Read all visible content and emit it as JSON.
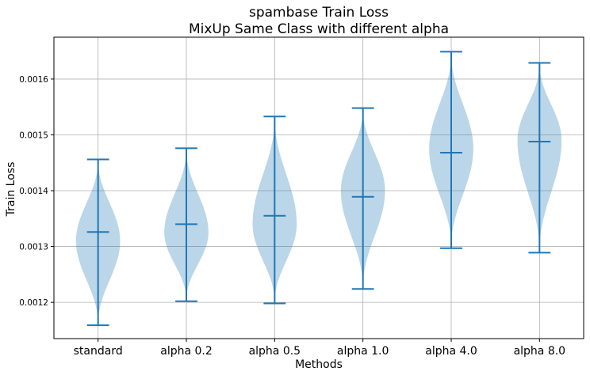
{
  "chart_data": {
    "type": "violin",
    "title_line1": "spambase Train Loss",
    "title_line2": "MixUp Same Class with different alpha",
    "xlabel": "Methods",
    "ylabel": "Train Loss",
    "categories": [
      "standard",
      "alpha 0.2",
      "alpha 0.5",
      "alpha 1.0",
      "alpha 4.0",
      "alpha 8.0"
    ],
    "min": [
      0.001159,
      0.001202,
      0.001198,
      0.001224,
      0.001297,
      0.001289
    ],
    "max": [
      0.001456,
      0.001476,
      0.001533,
      0.001548,
      0.001649,
      0.001629
    ],
    "mean": [
      0.001326,
      0.00134,
      0.001355,
      0.001389,
      0.001468,
      0.001488
    ],
    "distribution_peak": [
      0.00131,
      0.001325,
      0.00134,
      0.0014,
      0.001475,
      0.00149
    ],
    "yticks": [
      0.0012,
      0.0013,
      0.0014,
      0.0015,
      0.0016
    ],
    "ytick_labels": [
      "0.0012",
      "0.0013",
      "0.0014",
      "0.0015",
      "0.0016"
    ],
    "ylim": [
      0.001135,
      0.001675
    ],
    "grid": true,
    "color": "#1f77b4"
  }
}
